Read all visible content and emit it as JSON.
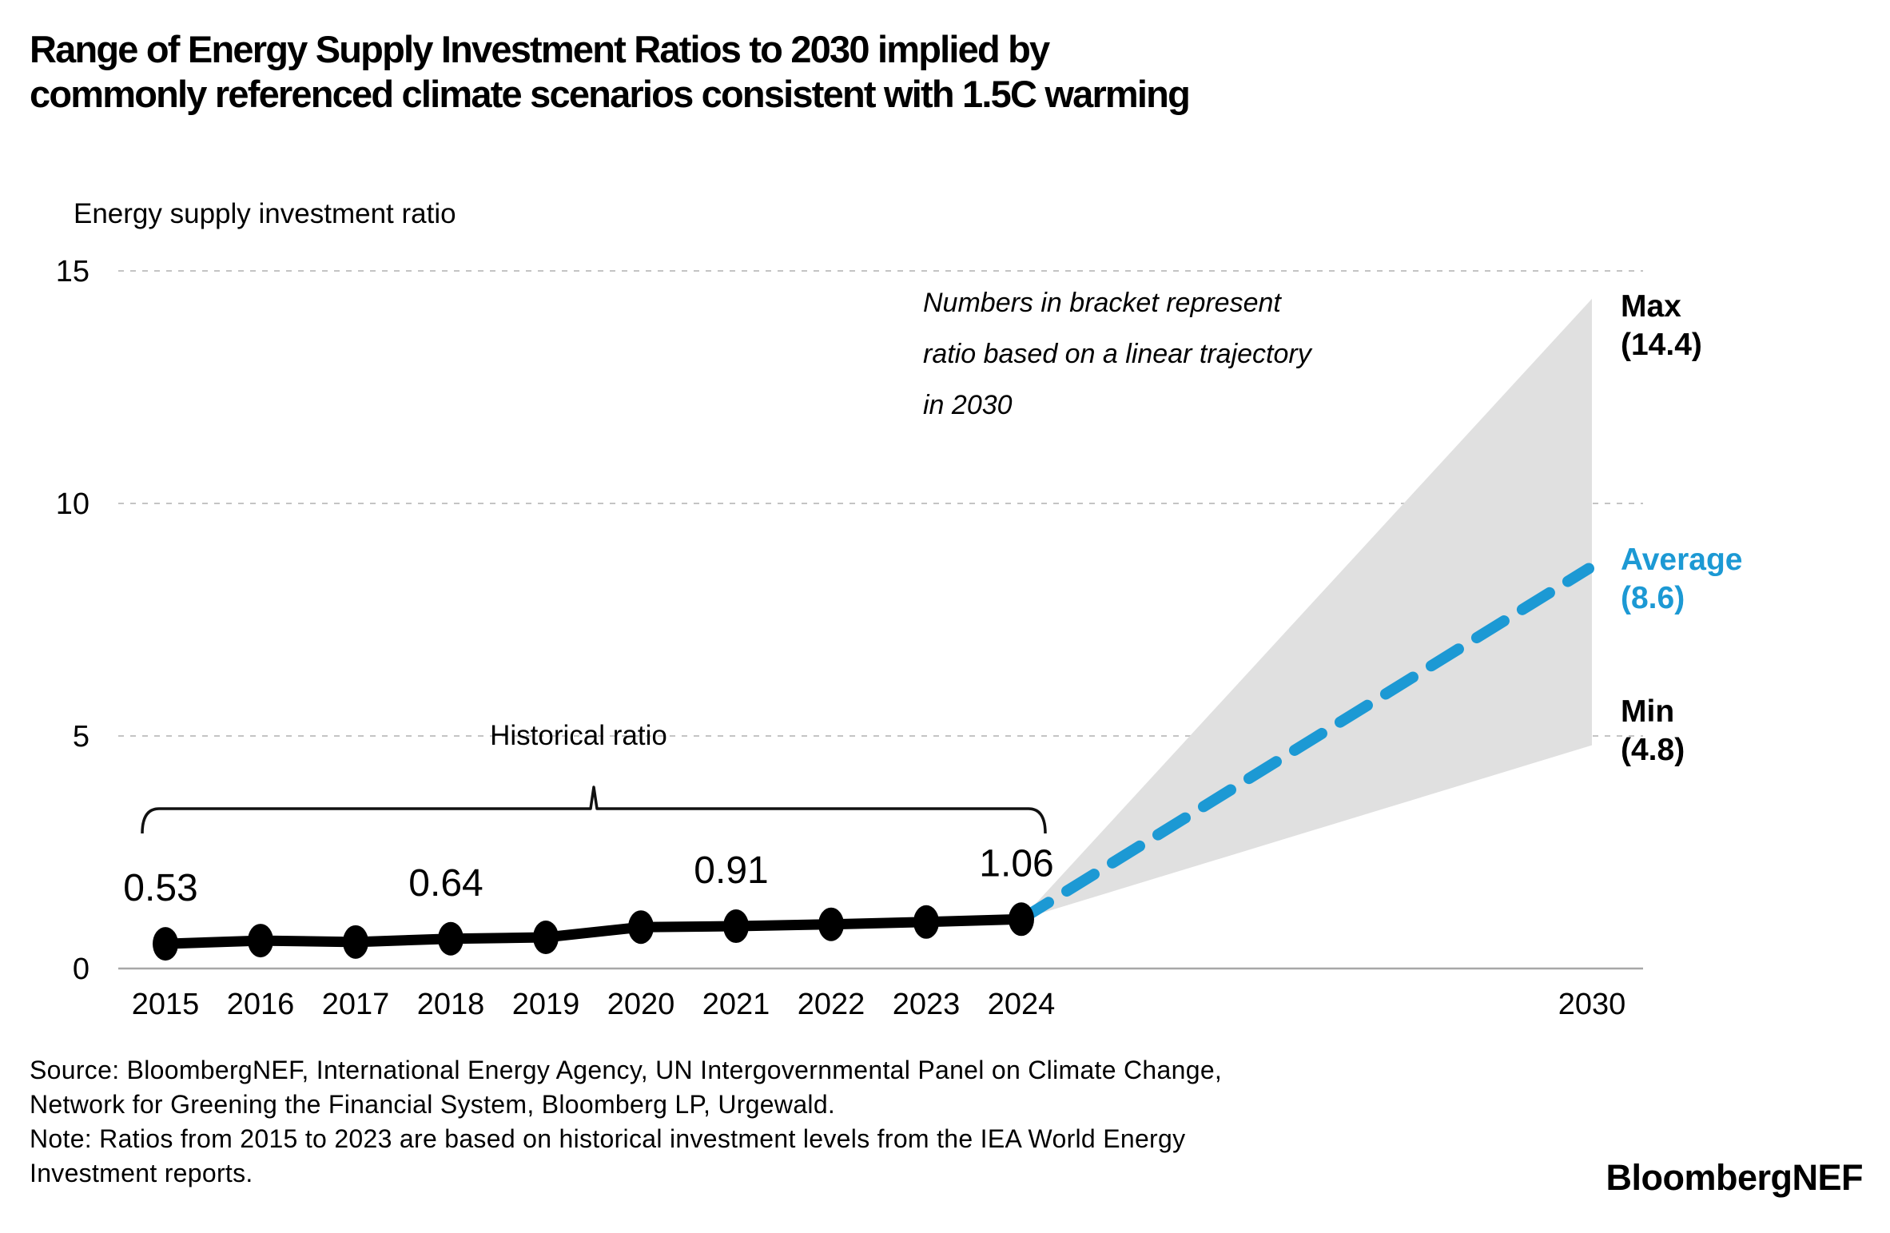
{
  "header": {
    "title": "Range of Energy Supply Investment Ratios to 2030 implied by\ncommonly referenced climate scenarios consistent with 1.5C warming"
  },
  "chart_data": {
    "type": "line",
    "axis_title": "Energy supply investment ratio",
    "ylim": [
      0,
      15
    ],
    "yticks": [
      0,
      5,
      10,
      15
    ],
    "xticks": [
      2015,
      2016,
      2017,
      2018,
      2019,
      2020,
      2021,
      2022,
      2023,
      2024,
      2030
    ],
    "grid": "horizontal-dotted",
    "series": [
      {
        "name": "Historical ratio",
        "color": "#000000",
        "style": "solid-with-markers",
        "x": [
          2015,
          2016,
          2017,
          2018,
          2019,
          2020,
          2021,
          2022,
          2023,
          2024
        ],
        "values": [
          0.53,
          0.6,
          0.57,
          0.64,
          0.67,
          0.89,
          0.91,
          0.95,
          1.0,
          1.06
        ],
        "data_labels": [
          {
            "x": 2015,
            "text": "0.53"
          },
          {
            "x": 2018,
            "text": "0.64"
          },
          {
            "x": 2021,
            "text": "0.91"
          },
          {
            "x": 2024,
            "text": "1.06"
          }
        ]
      },
      {
        "name": "Average",
        "color": "#1C99D4",
        "style": "dashed",
        "x": [
          2024,
          2030
        ],
        "values": [
          1.06,
          8.6
        ]
      }
    ],
    "range_fan": {
      "from_year": 2024,
      "from_value": 1.06,
      "to_year": 2030,
      "max": 14.4,
      "min": 4.8,
      "fill": "#E0E0E0"
    }
  },
  "annotations": {
    "bracket_note": "Numbers in bracket represent\nratio based on a linear trajectory\nin 2030",
    "historical_label": "Historical ratio",
    "end_labels": [
      {
        "name": "Max",
        "value": "(14.4)"
      },
      {
        "name": "Average",
        "value": "(8.6)"
      },
      {
        "name": "Min",
        "value": "(4.8)"
      }
    ]
  },
  "footer": {
    "source_note": "Source: BloombergNEF, International Energy Agency, UN Intergovernmental Panel on Climate Change,\nNetwork for Greening the Financial System, Bloomberg LP, Urgewald.\nNote: Ratios from 2015 to 2023 are based on historical investment levels from the IEA World Energy\nInvestment reports.",
    "logo": "BloombergNEF"
  },
  "colors": {
    "accent_blue": "#1C99D4",
    "fan_gray": "#E0E0E0",
    "gridline": "#C4C4C4",
    "axis_line": "#A8A8A8",
    "text_black": "#000000"
  }
}
